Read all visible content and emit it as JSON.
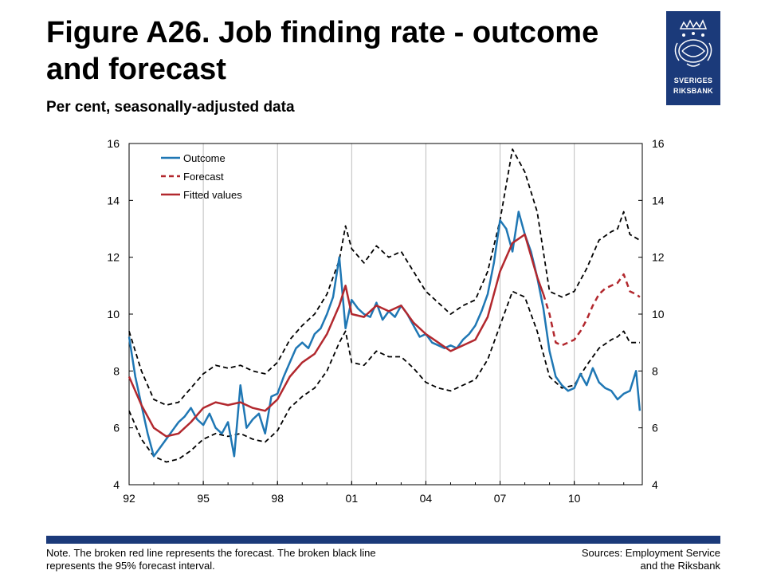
{
  "header": {
    "title_line1": "Figure A26. Job finding rate - outcome",
    "title_line2": "and forecast",
    "subtitle": "Per cent, seasonally-adjusted data"
  },
  "logo": {
    "line1": "SVERIGES",
    "line2": "RIKSBANK"
  },
  "footer": {
    "note_line1": "Note. The broken red line represents the forecast. The broken black line",
    "note_line2": "represents the 95% forecast interval.",
    "sources_line1": "Sources: Employment Service",
    "sources_line2": "and the Riksbank"
  },
  "colors": {
    "outcome": "#1f77b4",
    "forecast": "#b2282e",
    "fitted": "#b2282e",
    "interval": "#000000",
    "brand": "#1b3a7a"
  },
  "chart_data": {
    "type": "line",
    "x_start": "1992",
    "x_end": "2012",
    "ylim": [
      4,
      16
    ],
    "yticks": [
      4,
      6,
      8,
      10,
      12,
      14,
      16
    ],
    "xticks": [
      {
        "label": "92",
        "year": 1992
      },
      {
        "label": "95",
        "year": 1995
      },
      {
        "label": "98",
        "year": 1998
      },
      {
        "label": "01",
        "year": 2001
      },
      {
        "label": "04",
        "year": 2004
      },
      {
        "label": "07",
        "year": 2007
      },
      {
        "label": "10",
        "year": 2010
      }
    ],
    "legend": [
      "Outcome",
      "Forecast",
      "Fitted values"
    ],
    "legend_position": "top-left",
    "grid": "vertical",
    "series": [
      {
        "name": "Outcome",
        "style": "solid",
        "points": [
          [
            1992.0,
            9.2
          ],
          [
            1992.25,
            7.8
          ],
          [
            1992.5,
            6.8
          ],
          [
            1992.75,
            5.8
          ],
          [
            1993.0,
            5.0
          ],
          [
            1993.25,
            5.3
          ],
          [
            1993.5,
            5.6
          ],
          [
            1993.75,
            5.9
          ],
          [
            1994.0,
            6.2
          ],
          [
            1994.25,
            6.4
          ],
          [
            1994.5,
            6.7
          ],
          [
            1994.75,
            6.3
          ],
          [
            1995.0,
            6.1
          ],
          [
            1995.25,
            6.5
          ],
          [
            1995.5,
            6.0
          ],
          [
            1995.75,
            5.8
          ],
          [
            1996.0,
            6.2
          ],
          [
            1996.25,
            5.0
          ],
          [
            1996.5,
            7.5
          ],
          [
            1996.75,
            6.0
          ],
          [
            1997.0,
            6.3
          ],
          [
            1997.25,
            6.5
          ],
          [
            1997.5,
            5.8
          ],
          [
            1997.75,
            7.1
          ],
          [
            1998.0,
            7.2
          ],
          [
            1998.25,
            7.8
          ],
          [
            1998.5,
            8.3
          ],
          [
            1998.75,
            8.8
          ],
          [
            1999.0,
            9.0
          ],
          [
            1999.25,
            8.8
          ],
          [
            1999.5,
            9.3
          ],
          [
            1999.75,
            9.5
          ],
          [
            2000.0,
            10.0
          ],
          [
            2000.25,
            10.6
          ],
          [
            2000.5,
            12.0
          ],
          [
            2000.75,
            9.5
          ],
          [
            2001.0,
            10.5
          ],
          [
            2001.25,
            10.2
          ],
          [
            2001.5,
            10.0
          ],
          [
            2001.75,
            9.9
          ],
          [
            2002.0,
            10.4
          ],
          [
            2002.25,
            9.8
          ],
          [
            2002.5,
            10.1
          ],
          [
            2002.75,
            9.9
          ],
          [
            2003.0,
            10.3
          ],
          [
            2003.25,
            10.0
          ],
          [
            2003.5,
            9.6
          ],
          [
            2003.75,
            9.2
          ],
          [
            2004.0,
            9.3
          ],
          [
            2004.25,
            9.0
          ],
          [
            2004.5,
            8.9
          ],
          [
            2004.75,
            8.8
          ],
          [
            2005.0,
            8.9
          ],
          [
            2005.25,
            8.8
          ],
          [
            2005.5,
            9.1
          ],
          [
            2005.75,
            9.3
          ],
          [
            2006.0,
            9.6
          ],
          [
            2006.25,
            10.1
          ],
          [
            2006.5,
            10.7
          ],
          [
            2006.75,
            11.8
          ],
          [
            2007.0,
            13.3
          ],
          [
            2007.25,
            13.0
          ],
          [
            2007.5,
            12.2
          ],
          [
            2007.75,
            13.6
          ],
          [
            2008.0,
            12.8
          ],
          [
            2008.25,
            12.2
          ],
          [
            2008.5,
            11.3
          ],
          [
            2008.75,
            10.2
          ],
          [
            2009.0,
            8.7
          ],
          [
            2009.25,
            7.8
          ],
          [
            2009.5,
            7.5
          ],
          [
            2009.75,
            7.3
          ],
          [
            2010.0,
            7.4
          ],
          [
            2010.25,
            7.9
          ],
          [
            2010.5,
            7.5
          ],
          [
            2010.75,
            8.1
          ],
          [
            2011.0,
            7.6
          ],
          [
            2011.25,
            7.4
          ],
          [
            2011.5,
            7.3
          ],
          [
            2011.75,
            7.0
          ],
          [
            2012.0,
            7.2
          ],
          [
            2012.25,
            7.3
          ],
          [
            2012.5,
            8.0
          ],
          [
            2012.65,
            6.6
          ]
        ]
      },
      {
        "name": "Fitted values",
        "style": "solid",
        "points": [
          [
            1992.0,
            7.8
          ],
          [
            1992.5,
            6.8
          ],
          [
            1993.0,
            6.0
          ],
          [
            1993.5,
            5.7
          ],
          [
            1994.0,
            5.8
          ],
          [
            1994.5,
            6.2
          ],
          [
            1995.0,
            6.7
          ],
          [
            1995.5,
            6.9
          ],
          [
            1996.0,
            6.8
          ],
          [
            1996.5,
            6.9
          ],
          [
            1997.0,
            6.7
          ],
          [
            1997.5,
            6.6
          ],
          [
            1998.0,
            7.0
          ],
          [
            1998.5,
            7.8
          ],
          [
            1999.0,
            8.3
          ],
          [
            1999.5,
            8.6
          ],
          [
            2000.0,
            9.3
          ],
          [
            2000.5,
            10.3
          ],
          [
            2000.75,
            11.0
          ],
          [
            2001.0,
            10.0
          ],
          [
            2001.5,
            9.9
          ],
          [
            2002.0,
            10.3
          ],
          [
            2002.5,
            10.1
          ],
          [
            2003.0,
            10.3
          ],
          [
            2003.5,
            9.7
          ],
          [
            2004.0,
            9.3
          ],
          [
            2004.5,
            9.0
          ],
          [
            2005.0,
            8.7
          ],
          [
            2005.5,
            8.9
          ],
          [
            2006.0,
            9.1
          ],
          [
            2006.5,
            9.9
          ],
          [
            2007.0,
            11.5
          ],
          [
            2007.5,
            12.5
          ],
          [
            2008.0,
            12.8
          ],
          [
            2008.5,
            11.3
          ],
          [
            2008.75,
            10.7
          ]
        ]
      },
      {
        "name": "Forecast",
        "style": "dashed",
        "points": [
          [
            2008.75,
            10.7
          ],
          [
            2009.0,
            10.0
          ],
          [
            2009.25,
            9.0
          ],
          [
            2009.5,
            8.9
          ],
          [
            2009.75,
            9.0
          ],
          [
            2010.0,
            9.1
          ],
          [
            2010.25,
            9.4
          ],
          [
            2010.5,
            9.8
          ],
          [
            2010.75,
            10.3
          ],
          [
            2011.0,
            10.7
          ],
          [
            2011.25,
            10.9
          ],
          [
            2011.5,
            11.0
          ],
          [
            2011.75,
            11.1
          ],
          [
            2012.0,
            11.4
          ],
          [
            2012.25,
            10.8
          ],
          [
            2012.5,
            10.7
          ],
          [
            2012.65,
            10.6
          ]
        ]
      },
      {
        "name": "Upper 95% interval",
        "style": "dashed",
        "points": [
          [
            1992.0,
            9.4
          ],
          [
            1992.5,
            8.0
          ],
          [
            1993.0,
            7.0
          ],
          [
            1993.5,
            6.8
          ],
          [
            1994.0,
            6.9
          ],
          [
            1994.5,
            7.4
          ],
          [
            1995.0,
            7.9
          ],
          [
            1995.5,
            8.2
          ],
          [
            1996.0,
            8.1
          ],
          [
            1996.5,
            8.2
          ],
          [
            1997.0,
            8.0
          ],
          [
            1997.5,
            7.9
          ],
          [
            1998.0,
            8.3
          ],
          [
            1998.5,
            9.1
          ],
          [
            1999.0,
            9.6
          ],
          [
            1999.5,
            10.0
          ],
          [
            2000.0,
            10.7
          ],
          [
            2000.5,
            11.9
          ],
          [
            2000.75,
            13.1
          ],
          [
            2001.0,
            12.3
          ],
          [
            2001.5,
            11.8
          ],
          [
            2002.0,
            12.4
          ],
          [
            2002.5,
            12.0
          ],
          [
            2003.0,
            12.2
          ],
          [
            2003.5,
            11.5
          ],
          [
            2004.0,
            10.8
          ],
          [
            2004.5,
            10.4
          ],
          [
            2005.0,
            10.0
          ],
          [
            2005.5,
            10.3
          ],
          [
            2006.0,
            10.5
          ],
          [
            2006.5,
            11.5
          ],
          [
            2007.0,
            13.3
          ],
          [
            2007.5,
            15.8
          ],
          [
            2008.0,
            15.0
          ],
          [
            2008.5,
            13.6
          ],
          [
            2009.0,
            10.8
          ],
          [
            2009.5,
            10.6
          ],
          [
            2010.0,
            10.8
          ],
          [
            2010.5,
            11.6
          ],
          [
            2011.0,
            12.6
          ],
          [
            2011.5,
            12.9
          ],
          [
            2011.75,
            13.0
          ],
          [
            2012.0,
            13.6
          ],
          [
            2012.25,
            12.8
          ],
          [
            2012.65,
            12.6
          ]
        ]
      },
      {
        "name": "Lower 95% interval",
        "style": "dashed",
        "points": [
          [
            1992.0,
            6.6
          ],
          [
            1992.5,
            5.6
          ],
          [
            1993.0,
            5.0
          ],
          [
            1993.5,
            4.8
          ],
          [
            1994.0,
            4.9
          ],
          [
            1994.5,
            5.2
          ],
          [
            1995.0,
            5.6
          ],
          [
            1995.5,
            5.8
          ],
          [
            1996.0,
            5.7
          ],
          [
            1996.5,
            5.8
          ],
          [
            1997.0,
            5.6
          ],
          [
            1997.5,
            5.5
          ],
          [
            1998.0,
            5.9
          ],
          [
            1998.5,
            6.7
          ],
          [
            1999.0,
            7.1
          ],
          [
            1999.5,
            7.4
          ],
          [
            2000.0,
            8.0
          ],
          [
            2000.5,
            9.0
          ],
          [
            2000.75,
            9.4
          ],
          [
            2001.0,
            8.3
          ],
          [
            2001.5,
            8.2
          ],
          [
            2002.0,
            8.7
          ],
          [
            2002.5,
            8.5
          ],
          [
            2003.0,
            8.5
          ],
          [
            2003.5,
            8.1
          ],
          [
            2004.0,
            7.6
          ],
          [
            2004.5,
            7.4
          ],
          [
            2005.0,
            7.3
          ],
          [
            2005.5,
            7.5
          ],
          [
            2006.0,
            7.7
          ],
          [
            2006.5,
            8.4
          ],
          [
            2007.0,
            9.6
          ],
          [
            2007.5,
            10.8
          ],
          [
            2008.0,
            10.6
          ],
          [
            2008.5,
            9.4
          ],
          [
            2009.0,
            7.8
          ],
          [
            2009.5,
            7.4
          ],
          [
            2010.0,
            7.5
          ],
          [
            2010.5,
            8.2
          ],
          [
            2011.0,
            8.8
          ],
          [
            2011.5,
            9.1
          ],
          [
            2011.75,
            9.2
          ],
          [
            2012.0,
            9.4
          ],
          [
            2012.25,
            9.0
          ],
          [
            2012.65,
            9.0
          ]
        ]
      }
    ]
  }
}
